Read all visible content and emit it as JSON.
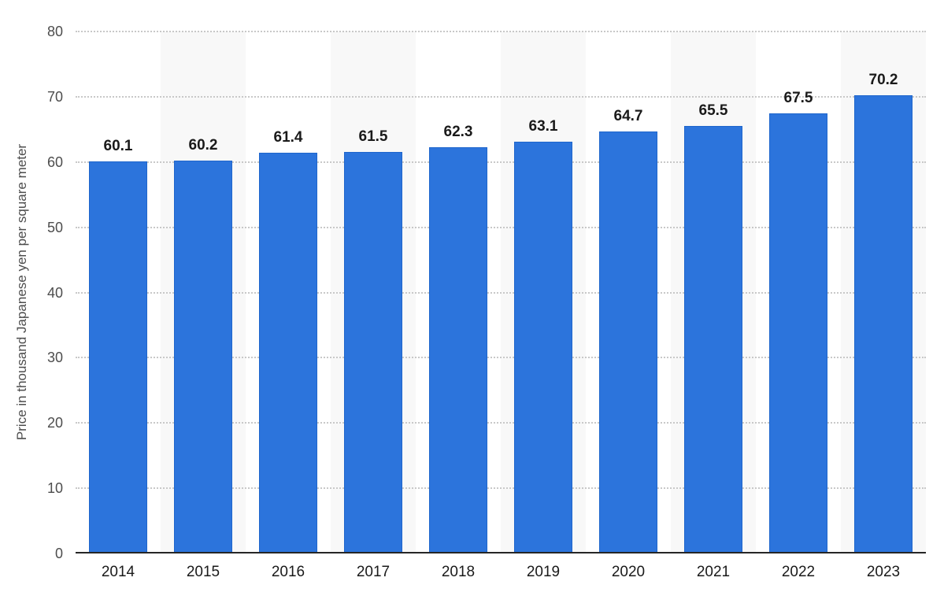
{
  "chart_data": {
    "type": "bar",
    "title": "",
    "xlabel": "",
    "ylabel": "Price in thousand Japanese yen per square meter",
    "categories": [
      "2014",
      "2015",
      "2016",
      "2017",
      "2018",
      "2019",
      "2020",
      "2021",
      "2022",
      "2023"
    ],
    "values": [
      60.1,
      60.2,
      61.4,
      61.5,
      62.3,
      63.1,
      64.7,
      65.5,
      67.5,
      70.2
    ],
    "value_labels": [
      "60.1",
      "60.2",
      "61.4",
      "61.5",
      "62.3",
      "63.1",
      "64.7",
      "65.5",
      "67.5",
      "70.2"
    ],
    "ylim": [
      0,
      80
    ],
    "yticks": [
      0,
      10,
      20,
      30,
      40,
      50,
      60,
      70,
      80
    ],
    "ytick_labels": [
      "0",
      "10",
      "20",
      "30",
      "40",
      "50",
      "60",
      "70",
      "80"
    ],
    "grid": "horizontal-dotted",
    "legend": "none",
    "striped_columns": "every second column has a light gray background band",
    "colors": {
      "bar_fill": "#2c74dc",
      "bar_border": "#1f66cc",
      "gridline": "#c8c8c8",
      "axis_line": "#262626",
      "ytick_label": "#4d4d4d",
      "category_label": "#1a1a1a",
      "value_label": "#1a1a1a",
      "column_stripe": "#f8f8f8",
      "background": "#ffffff"
    }
  }
}
